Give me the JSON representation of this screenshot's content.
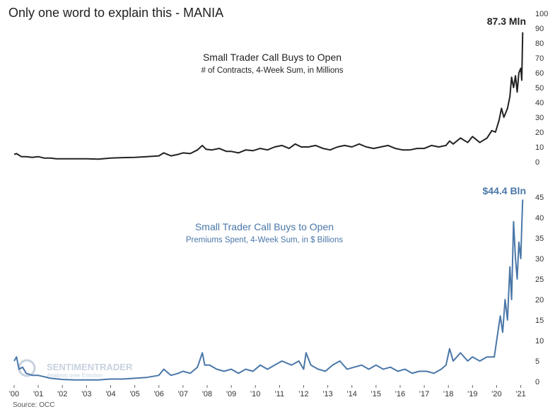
{
  "title": "Only one word to explain this - MANIA",
  "source": "Source: OCC",
  "watermark": {
    "brand": "SENTIMENTRADER",
    "tagline": "Analysis over Emotion"
  },
  "colors": {
    "top_series": "#222222",
    "bottom_series": "#4a77a8",
    "text": "#222222"
  },
  "chart_data": [
    {
      "type": "line",
      "title": "Small Trader Call Buys to Open",
      "subtitle": "# of Contracts, 4-Week Sum, in Millions",
      "end_label": "87.3 Mln",
      "ylim": [
        0,
        100
      ],
      "yticks": [
        0,
        10,
        20,
        30,
        40,
        50,
        60,
        70,
        80,
        90,
        100
      ],
      "xlim": [
        2000,
        2021.1
      ],
      "xticks": [
        "'00",
        "'01",
        "'02",
        "'03",
        "'04",
        "'05",
        "'06",
        "'07",
        "'08",
        "'09",
        "'10",
        "'11",
        "'12",
        "'13",
        "'14",
        "'15",
        "'16",
        "'17",
        "'18",
        "'19",
        "'20",
        "'21"
      ],
      "grid": false,
      "x": [
        2000.0,
        2000.1,
        2000.2,
        2000.3,
        2000.5,
        2000.75,
        2001.0,
        2001.25,
        2001.5,
        2001.75,
        2002.0,
        2002.5,
        2003.0,
        2003.5,
        2004.0,
        2004.5,
        2005.0,
        2005.5,
        2006.0,
        2006.2,
        2006.5,
        2006.8,
        2007.0,
        2007.3,
        2007.6,
        2007.8,
        2007.95,
        2008.2,
        2008.5,
        2008.8,
        2009.0,
        2009.3,
        2009.6,
        2009.9,
        2010.2,
        2010.5,
        2010.8,
        2011.1,
        2011.4,
        2011.65,
        2011.9,
        2012.2,
        2012.5,
        2012.8,
        2013.1,
        2013.4,
        2013.7,
        2014.0,
        2014.3,
        2014.6,
        2014.9,
        2015.2,
        2015.5,
        2015.8,
        2016.1,
        2016.4,
        2016.7,
        2017.0,
        2017.3,
        2017.6,
        2017.9,
        2018.05,
        2018.2,
        2018.5,
        2018.8,
        2019.0,
        2019.3,
        2019.6,
        2019.8,
        2019.95,
        2020.1,
        2020.2,
        2020.3,
        2020.45,
        2020.55,
        2020.62,
        2020.7,
        2020.78,
        2020.85,
        2020.92,
        2021.0,
        2021.04,
        2021.08
      ],
      "y": [
        5,
        5.5,
        4.5,
        3.5,
        3.5,
        3,
        3.5,
        2.5,
        2.5,
        2,
        2,
        2,
        2,
        1.8,
        2.5,
        2.8,
        3,
        3.5,
        4,
        6,
        4,
        5,
        6,
        5.5,
        8,
        11,
        8.5,
        8,
        9,
        7,
        7,
        6,
        8,
        7.5,
        9,
        8,
        10,
        11,
        9,
        12,
        10,
        10,
        11,
        9,
        8,
        10,
        11,
        10,
        12,
        10,
        9,
        10,
        11,
        9,
        8,
        8,
        9,
        9,
        11,
        10,
        11,
        14,
        12,
        16,
        13,
        17,
        13,
        16,
        21,
        20,
        28,
        36,
        30,
        36,
        44,
        57,
        50,
        58,
        47,
        60,
        63,
        55,
        87.3
      ]
    },
    {
      "type": "line",
      "title": "Small Trader Call Buys to Open",
      "subtitle": "Premiums Spent, 4-Week Sum, in $ Billions",
      "end_label": "$44.4 Bln",
      "ylim": [
        0,
        45
      ],
      "yticks": [
        0,
        5,
        10,
        15,
        20,
        25,
        30,
        35,
        40,
        45
      ],
      "xlim": [
        2000,
        2021.1
      ],
      "xticks": [
        "'00",
        "'01",
        "'02",
        "'03",
        "'04",
        "'05",
        "'06",
        "'07",
        "'08",
        "'09",
        "'10",
        "'11",
        "'12",
        "'13",
        "'14",
        "'15",
        "'16",
        "'17",
        "'18",
        "'19",
        "'20",
        "'21"
      ],
      "grid": false,
      "x": [
        2000.0,
        2000.1,
        2000.2,
        2000.35,
        2000.5,
        2000.75,
        2001.0,
        2001.5,
        2002.0,
        2002.5,
        2003.0,
        2003.5,
        2004.0,
        2004.5,
        2005.0,
        2005.5,
        2006.0,
        2006.2,
        2006.5,
        2006.8,
        2007.0,
        2007.3,
        2007.6,
        2007.8,
        2007.9,
        2008.1,
        2008.4,
        2008.7,
        2009.0,
        2009.3,
        2009.6,
        2009.9,
        2010.2,
        2010.5,
        2010.8,
        2011.1,
        2011.5,
        2011.8,
        2012.0,
        2012.1,
        2012.3,
        2012.6,
        2012.9,
        2013.2,
        2013.5,
        2013.8,
        2014.1,
        2014.4,
        2014.7,
        2015.0,
        2015.3,
        2015.6,
        2015.9,
        2016.2,
        2016.5,
        2016.8,
        2017.1,
        2017.4,
        2017.7,
        2017.9,
        2018.05,
        2018.2,
        2018.5,
        2018.8,
        2019.0,
        2019.3,
        2019.6,
        2019.9,
        2020.05,
        2020.15,
        2020.25,
        2020.35,
        2020.45,
        2020.55,
        2020.62,
        2020.7,
        2020.78,
        2020.85,
        2020.92,
        2021.0,
        2021.04,
        2021.08
      ],
      "y": [
        5,
        6,
        3,
        3.5,
        2,
        1.5,
        1.5,
        0.8,
        0.5,
        0.4,
        0.4,
        0.4,
        0.6,
        0.6,
        0.8,
        1,
        1.5,
        3,
        1.5,
        2,
        2.5,
        2,
        3.5,
        7,
        4,
        4,
        3,
        2.5,
        3,
        2,
        3,
        2.5,
        4,
        3,
        4,
        5,
        4,
        5,
        3,
        7,
        4,
        3,
        2.5,
        4,
        5,
        3,
        3.5,
        4,
        3,
        4,
        3,
        3.5,
        2.5,
        3,
        2,
        2.5,
        2.5,
        2,
        3,
        4,
        8,
        5,
        7,
        5,
        6,
        5,
        6,
        6,
        12,
        16,
        12,
        20,
        15,
        28,
        20,
        39,
        30,
        25,
        34,
        30,
        38,
        44.4
      ]
    }
  ]
}
